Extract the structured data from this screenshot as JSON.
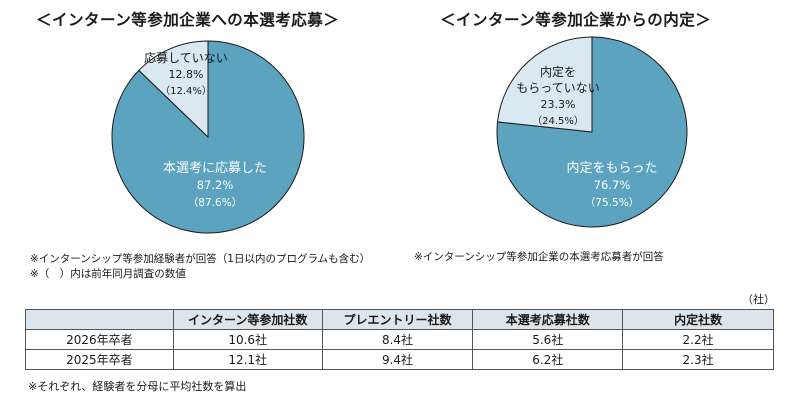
{
  "titles": {
    "left": "＜インターン等参加企業への本選考応募＞",
    "right": "＜インターン等参加企業からの内定＞"
  },
  "colors": {
    "main": "#5ba3bf",
    "minor": "#d9e8f1",
    "stroke": "#1a1a1a"
  },
  "chart_data": [
    {
      "type": "pie",
      "title": "＜インターン等参加企業への本選考応募＞",
      "slices": [
        {
          "label": "本選考に応募した",
          "value": 87.2,
          "value_text": "87.2%",
          "prev_value": 87.6,
          "prev_text": "（87.6%）"
        },
        {
          "label": "応募していない",
          "value": 12.8,
          "value_text": "12.8%",
          "prev_value": 12.4,
          "prev_text": "（12.4%）"
        }
      ]
    },
    {
      "type": "pie",
      "title": "＜インターン等参加企業からの内定＞",
      "slices": [
        {
          "label": "内定をもらった",
          "value": 76.7,
          "value_text": "76.7%",
          "prev_value": 75.5,
          "prev_text": "（75.5%）"
        },
        {
          "label_lines": [
            "内定を",
            "もらっていない"
          ],
          "value": 23.3,
          "value_text": "23.3%",
          "prev_value": 24.5,
          "prev_text": "（24.5%）"
        }
      ]
    },
    {
      "type": "table",
      "unit": "（社）",
      "headers": [
        "",
        "インターン等参加社数",
        "プレエントリー社数",
        "本選考応募社数",
        "内定社数"
      ],
      "rows": [
        [
          "2026年卒者",
          "10.6社",
          "8.4社",
          "5.6社",
          "2.2社"
        ],
        [
          "2025年卒者",
          "12.1社",
          "9.4社",
          "6.2社",
          "2.3社"
        ]
      ]
    }
  ],
  "notes": {
    "left_1": "※インターンシップ等参加経験者が回答（1日以内のプログラムも含む）",
    "left_2": "※（　）内は前年同月調査の数値",
    "right_1": "※インターンシップ等参加企業の本選考応募者が回答",
    "footer": "※それぞれ、経験者を分母に平均社数を算出"
  }
}
